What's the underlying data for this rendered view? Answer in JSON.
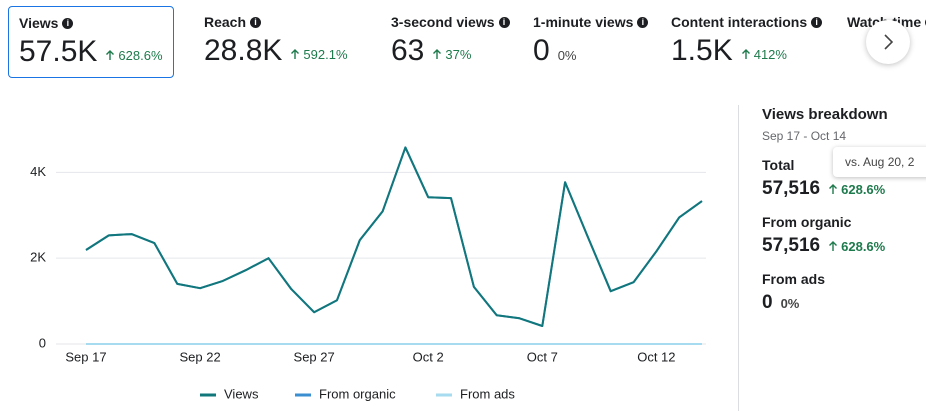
{
  "metrics": [
    {
      "label": "Views",
      "value": "57.5K",
      "change": "628.6%",
      "trend": "up",
      "selected": true
    },
    {
      "label": "Reach",
      "value": "28.8K",
      "change": "592.1%",
      "trend": "up",
      "selected": false
    },
    {
      "label": "3-second views",
      "value": "63",
      "change": "37%",
      "trend": "up",
      "selected": false
    },
    {
      "label": "1-minute views",
      "value": "0",
      "change": "0%",
      "trend": "flat",
      "selected": false
    },
    {
      "label": "Content interactions",
      "value": "1.5K",
      "change": "412%",
      "trend": "up",
      "selected": false
    },
    {
      "label": "Watch time",
      "selected": false
    }
  ],
  "chart_data": {
    "type": "line",
    "categories": [
      "Sep 17",
      null,
      null,
      null,
      null,
      "Sep 22",
      null,
      null,
      null,
      null,
      "Sep 27",
      null,
      null,
      null,
      null,
      "Oct 2",
      null,
      null,
      null,
      null,
      "Oct 7",
      null,
      null,
      null,
      null,
      "Oct 12",
      null,
      null
    ],
    "series": [
      {
        "name": "Views",
        "color": "#12777b",
        "values": [
          2190,
          2530,
          2560,
          2350,
          1400,
          1300,
          1470,
          1720,
          2000,
          1280,
          740,
          1020,
          2420,
          3090,
          4580,
          3420,
          3400,
          1330,
          670,
          600,
          420,
          3770,
          2490,
          1230,
          1440,
          2160,
          2950,
          3330
        ]
      },
      {
        "name": "From organic",
        "color": "#3b8fd1",
        "values": [
          2190,
          2530,
          2560,
          2350,
          1400,
          1300,
          1470,
          1720,
          2000,
          1280,
          740,
          1020,
          2420,
          3090,
          4580,
          3420,
          3400,
          1330,
          670,
          600,
          420,
          3770,
          2490,
          1230,
          1440,
          2160,
          2950,
          3330
        ]
      },
      {
        "name": "From ads",
        "color": "#a7dbef",
        "values": [
          0,
          0,
          0,
          0,
          0,
          0,
          0,
          0,
          0,
          0,
          0,
          0,
          0,
          0,
          0,
          0,
          0,
          0,
          0,
          0,
          0,
          0,
          0,
          0,
          0,
          0,
          0,
          0
        ]
      }
    ],
    "ylim": [
      0,
      4800
    ],
    "yticks": [
      0,
      {
        "value": 2000,
        "label": "2K"
      },
      {
        "value": 4000,
        "label": "4K"
      }
    ],
    "grid": true,
    "legend": "bottom"
  },
  "breakdown": {
    "title": "Views breakdown",
    "date_range": "Sep 17 - Oct 14",
    "tooltip": "vs. Aug 20, 2",
    "items": [
      {
        "label": "Total",
        "value": "57,516",
        "change": "628.6%",
        "trend": "up"
      },
      {
        "label": "From organic",
        "value": "57,516",
        "change": "628.6%",
        "trend": "up"
      },
      {
        "label": "From ads",
        "value": "0",
        "change": "0%",
        "trend": "flat"
      }
    ]
  }
}
